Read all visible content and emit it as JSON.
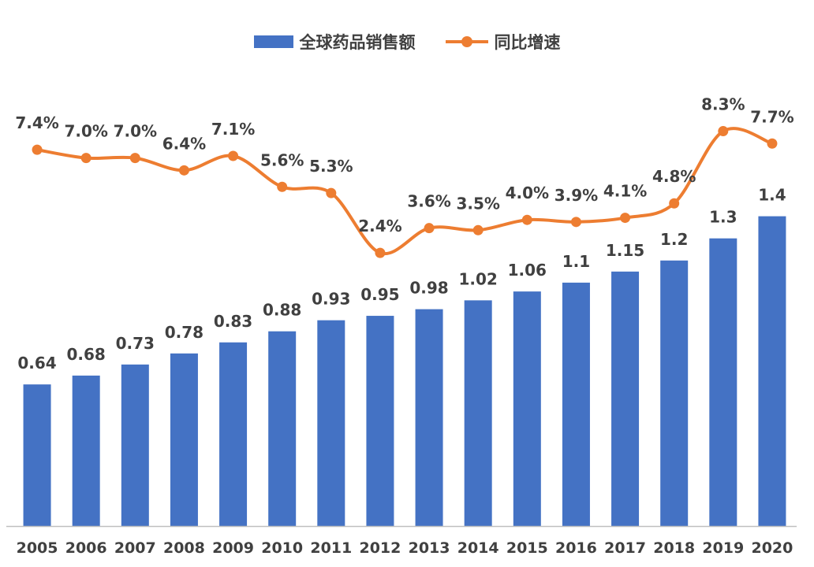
{
  "chart_data": {
    "type": "bar+line",
    "categories": [
      "2005",
      "2006",
      "2007",
      "2008",
      "2009",
      "2010",
      "2011",
      "2012",
      "2013",
      "2014",
      "2015",
      "2016",
      "2017",
      "2018",
      "2019",
      "2020"
    ],
    "series": [
      {
        "name": "全球药品销售额",
        "type": "bar",
        "color": "#4472C4",
        "values": [
          0.64,
          0.68,
          0.73,
          0.78,
          0.83,
          0.88,
          0.93,
          0.95,
          0.98,
          1.02,
          1.06,
          1.1,
          1.15,
          1.2,
          1.3,
          1.4
        ],
        "labels": [
          "0.64",
          "0.68",
          "0.73",
          "0.78",
          "0.83",
          "0.88",
          "0.93",
          "0.95",
          "0.98",
          "1.02",
          "1.06",
          "1.1",
          "1.15",
          "1.2",
          "1.3",
          "1.4"
        ]
      },
      {
        "name": "同比增速",
        "type": "line",
        "color": "#ED7D31",
        "values": [
          7.4,
          7.0,
          7.0,
          6.4,
          7.1,
          5.6,
          5.3,
          2.4,
          3.6,
          3.5,
          4.0,
          3.9,
          4.1,
          4.8,
          8.3,
          7.7
        ],
        "labels": [
          "7.4%",
          "7.0%",
          "7.0%",
          "6.4%",
          "7.1%",
          "5.6%",
          "5.3%",
          "2.4%",
          "3.6%",
          "3.5%",
          "4.0%",
          "3.9%",
          "4.1%",
          "4.8%",
          "8.3%",
          "7.7%"
        ]
      }
    ],
    "legend_position": "top-center",
    "grid": false,
    "text_color": "#404040",
    "axis_color": "#BFBFBF"
  }
}
